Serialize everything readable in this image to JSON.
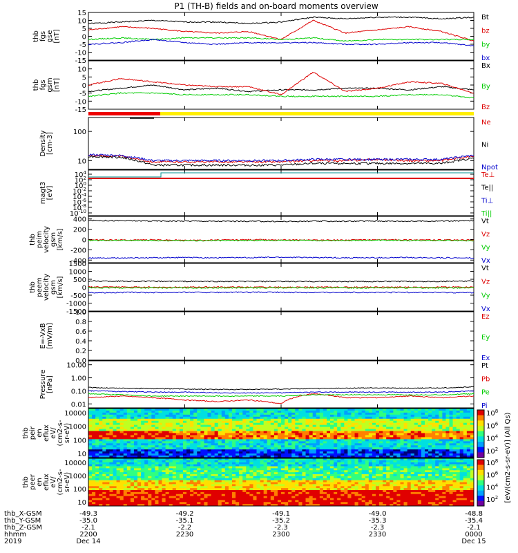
{
  "title": "P1 (TH-B) fields and on-board moments overview",
  "colors": {
    "black": "#000000",
    "red": "#dd0000",
    "green": "#00cc00",
    "blue": "#0000cc",
    "yellow": "#ffee00",
    "red_bar": "#ee0000",
    "teal": "#009090"
  },
  "chart_data": {
    "type": "line",
    "time_range": [
      "2019-12-14 22:00",
      "2019-12-15 00:00"
    ],
    "panels": [
      {
        "id": "fgs-gse",
        "ylabel": [
          "thb",
          "fgs",
          "gse",
          "[nT]"
        ],
        "ylim": [
          -15,
          15
        ],
        "ticks": [
          "15",
          "10",
          "5",
          "0",
          "-5",
          "-10",
          "-15"
        ],
        "series": [
          {
            "name": "Bt",
            "color": "black",
            "values": [
              8,
              9,
              10,
              9,
              9,
              8,
              9,
              12,
              11,
              12,
              12,
              11,
              12
            ]
          },
          {
            "name": "bz",
            "color": "red",
            "values": [
              4,
              6,
              5,
              3,
              2,
              3,
              -2,
              10,
              2,
              4,
              6,
              3,
              -3
            ]
          },
          {
            "name": "by",
            "color": "green",
            "values": [
              -2,
              -1,
              -2,
              -1,
              -1,
              -1,
              -2,
              -1,
              -3,
              -2,
              -2,
              -2,
              -2
            ]
          },
          {
            "name": "bx",
            "color": "blue",
            "values": [
              -5,
              -4,
              -2,
              -4,
              -5,
              -4,
              -4,
              -4,
              -5,
              -5,
              -4,
              -4,
              -6
            ]
          }
        ]
      },
      {
        "id": "fgs-gsm",
        "ylabel": [
          "thb",
          "fgs",
          "gsm",
          "[nT]"
        ],
        "ylim": [
          -15,
          15
        ],
        "ticks": [
          "10",
          "5",
          "0",
          "-5",
          "-10",
          "-15"
        ],
        "series": [
          {
            "name": "Bx",
            "color": "black",
            "values": [
              -4,
              -2,
              0,
              -3,
              -2,
              -4,
              -3,
              -3,
              -2,
              -2,
              -3,
              -1,
              -3
            ]
          },
          {
            "name": "By",
            "color": "green",
            "values": [
              -7,
              -5,
              -5,
              -6,
              -6,
              -6,
              -7,
              -7,
              -7,
              -7,
              -6,
              -6,
              -8
            ]
          },
          {
            "name": "Bz",
            "color": "red",
            "values": [
              0,
              4,
              2,
              0,
              -1,
              -1,
              -6,
              8,
              -4,
              -2,
              2,
              1,
              -5
            ]
          }
        ]
      },
      {
        "id": "density",
        "ylabel": [
          "Density",
          "[cm-3]"
        ],
        "ylim": [
          5,
          300
        ],
        "log": true,
        "ticks": [
          "100",
          "10"
        ],
        "series": [
          {
            "name": "Ne",
            "color": "red",
            "values": [
              15,
              14,
              9,
              9,
              9,
              9,
              9,
              10,
              10,
              11,
              10,
              10,
              14
            ]
          },
          {
            "name": "Ni",
            "color": "black",
            "values": [
              14,
              13,
              7,
              7,
              7,
              7,
              7,
              8,
              8,
              8,
              8,
              8,
              12
            ]
          },
          {
            "name": "Npot",
            "color": "blue",
            "values": [
              16,
              15,
              10,
              10,
              10,
              10,
              10,
              11,
              11,
              11,
              11,
              11,
              15
            ]
          }
        ]
      },
      {
        "id": "magt3",
        "ylabel": [
          "magt3",
          "[eV]"
        ],
        "ticks": [
          "10^4",
          "10^2",
          "10^0",
          "10^-2",
          "10^-4",
          "10^-6",
          "10^-8",
          "10^-10"
        ],
        "legend": [
          "Te⊥",
          "Te||",
          "Ti⊥",
          "Ti||"
        ],
        "legend_colors": [
          "red",
          "black",
          "blue",
          "green"
        ]
      },
      {
        "id": "peim",
        "ylabel": [
          "thb",
          "peim",
          "velocity",
          "gsm",
          "[km/s]"
        ],
        "ylim": [
          -450,
          450
        ],
        "ticks": [
          "400",
          "200",
          "0",
          "-200",
          "-400"
        ],
        "series": [
          {
            "name": "Vt",
            "color": "black",
            "values": [
              370,
              365,
              360,
              360,
              355,
              355,
              350,
              355,
              355,
              360,
              355,
              360,
              365
            ]
          },
          {
            "name": "Vz",
            "color": "red",
            "values": [
              -5,
              -10,
              -5,
              -15,
              -10,
              -5,
              -5,
              -10,
              -10,
              -5,
              -5,
              -10,
              -10
            ]
          },
          {
            "name": "Vy",
            "color": "green",
            "values": [
              -20,
              -15,
              -20,
              -25,
              -20,
              -20,
              -15,
              -20,
              -20,
              -15,
              -20,
              -20,
              -20
            ]
          },
          {
            "name": "Vx",
            "color": "blue",
            "values": [
              -360,
              -360,
              -355,
              -350,
              -355,
              -350,
              -345,
              -350,
              -355,
              -355,
              -350,
              -355,
              -360
            ]
          }
        ]
      },
      {
        "id": "peem",
        "ylabel": [
          "thb",
          "peem",
          "velocity",
          "gsm",
          "[km/s]"
        ],
        "ylim": [
          -1500,
          1500
        ],
        "ticks": [
          "1500",
          "1000",
          "500",
          "0",
          "-500",
          "-1000",
          "-1500"
        ],
        "series": [
          {
            "name": "Vt",
            "color": "black",
            "values": [
              390,
              380,
              370,
              370,
              360,
              360,
              360,
              360,
              360,
              360,
              360,
              370,
              380
            ]
          },
          {
            "name": "Vz",
            "color": "red",
            "values": [
              20,
              10,
              0,
              0,
              10,
              0,
              0,
              0,
              0,
              0,
              0,
              10,
              10
            ]
          },
          {
            "name": "Vy",
            "color": "green",
            "values": [
              -40,
              -40,
              -40,
              -40,
              -40,
              -40,
              -40,
              -40,
              -40,
              -40,
              -40,
              -40,
              -40
            ]
          },
          {
            "name": "Vx",
            "color": "blue",
            "values": [
              -340,
              -330,
              -330,
              -320,
              -330,
              -320,
              -320,
              -330,
              -320,
              -330,
              -320,
              -330,
              -340
            ]
          }
        ]
      },
      {
        "id": "efield",
        "ylabel": [
          "E=-VxB",
          "[mV/m]"
        ],
        "ylim": [
          0,
          1
        ],
        "ticks": [
          "1.0",
          "0.8",
          "0.6",
          "0.4",
          "0.2",
          "0.0"
        ],
        "legend": [
          "Ez",
          "Ey",
          "Ex"
        ],
        "legend_colors": [
          "red",
          "green",
          "blue"
        ]
      },
      {
        "id": "pressure",
        "ylabel": [
          "Pressure",
          "[nPa]"
        ],
        "ylim": [
          0.005,
          20
        ],
        "log": true,
        "ticks": [
          "10.00",
          "1.00",
          "0.10",
          "0.01"
        ],
        "series": [
          {
            "name": "Pt",
            "color": "black",
            "values": [
              0.18,
              0.16,
              0.15,
              0.14,
              0.13,
              0.13,
              0.14,
              0.15,
              0.16,
              0.17,
              0.16,
              0.17,
              0.2
            ]
          },
          {
            "name": "Pb",
            "color": "red",
            "values": [
              0.03,
              0.04,
              0.03,
              0.02,
              0.015,
              0.02,
              0.01,
              0.06,
              0.03,
              0.03,
              0.04,
              0.03,
              0.04
            ]
          },
          {
            "name": "Pe",
            "color": "green",
            "values": [
              0.06,
              0.05,
              0.04,
              0.04,
              0.04,
              0.04,
              0.04,
              0.05,
              0.05,
              0.05,
              0.05,
              0.05,
              0.06
            ]
          },
          {
            "name": "Pi",
            "color": "blue",
            "values": [
              0.1,
              0.09,
              0.08,
              0.08,
              0.07,
              0.07,
              0.07,
              0.08,
              0.08,
              0.08,
              0.08,
              0.08,
              0.1
            ]
          }
        ]
      },
      {
        "id": "peir",
        "type": "heatmap",
        "ylabel": [
          "thb",
          "peir",
          "en",
          "eflux",
          "eV/",
          "(cm2-s-",
          "sr-eV)"
        ],
        "ylim": [
          5,
          20000
        ],
        "log": true,
        "ticks": [
          "10000",
          "1000",
          "100",
          "10"
        ]
      },
      {
        "id": "peer",
        "type": "heatmap",
        "ylabel": [
          "thb",
          "peer",
          "en",
          "eflux",
          "eV/",
          "(cm2-s-",
          "sr-eV)"
        ],
        "ylim": [
          5,
          20000
        ],
        "log": true,
        "ticks": [
          "10000",
          "1000",
          "100",
          "10"
        ]
      }
    ],
    "colorbar": {
      "label": "[eV/(cm2-s-sr-eV)] (All Qs)",
      "ticks": [
        "10^8",
        "10^6",
        "10^4",
        "10^2"
      ]
    },
    "ephemeris": {
      "row_labels": [
        "thb_X-GSM",
        "thb_Y-GSM",
        "thb_Z-GSM",
        "hhmm",
        "2019"
      ],
      "columns": [
        [
          "-49.3",
          "-35.0",
          "-2.1",
          "2200",
          "Dec 14"
        ],
        [
          "-49.2",
          "-35.1",
          "-2.2",
          "2230",
          ""
        ],
        [
          "-49.1",
          "-35.2",
          "-2.3",
          "2300",
          ""
        ],
        [
          "-49.0",
          "-35.3",
          "-2.3",
          "2330",
          ""
        ],
        [
          "-48.8",
          "-35.4",
          "-2.1",
          "0000",
          "Dec 15"
        ]
      ]
    }
  }
}
